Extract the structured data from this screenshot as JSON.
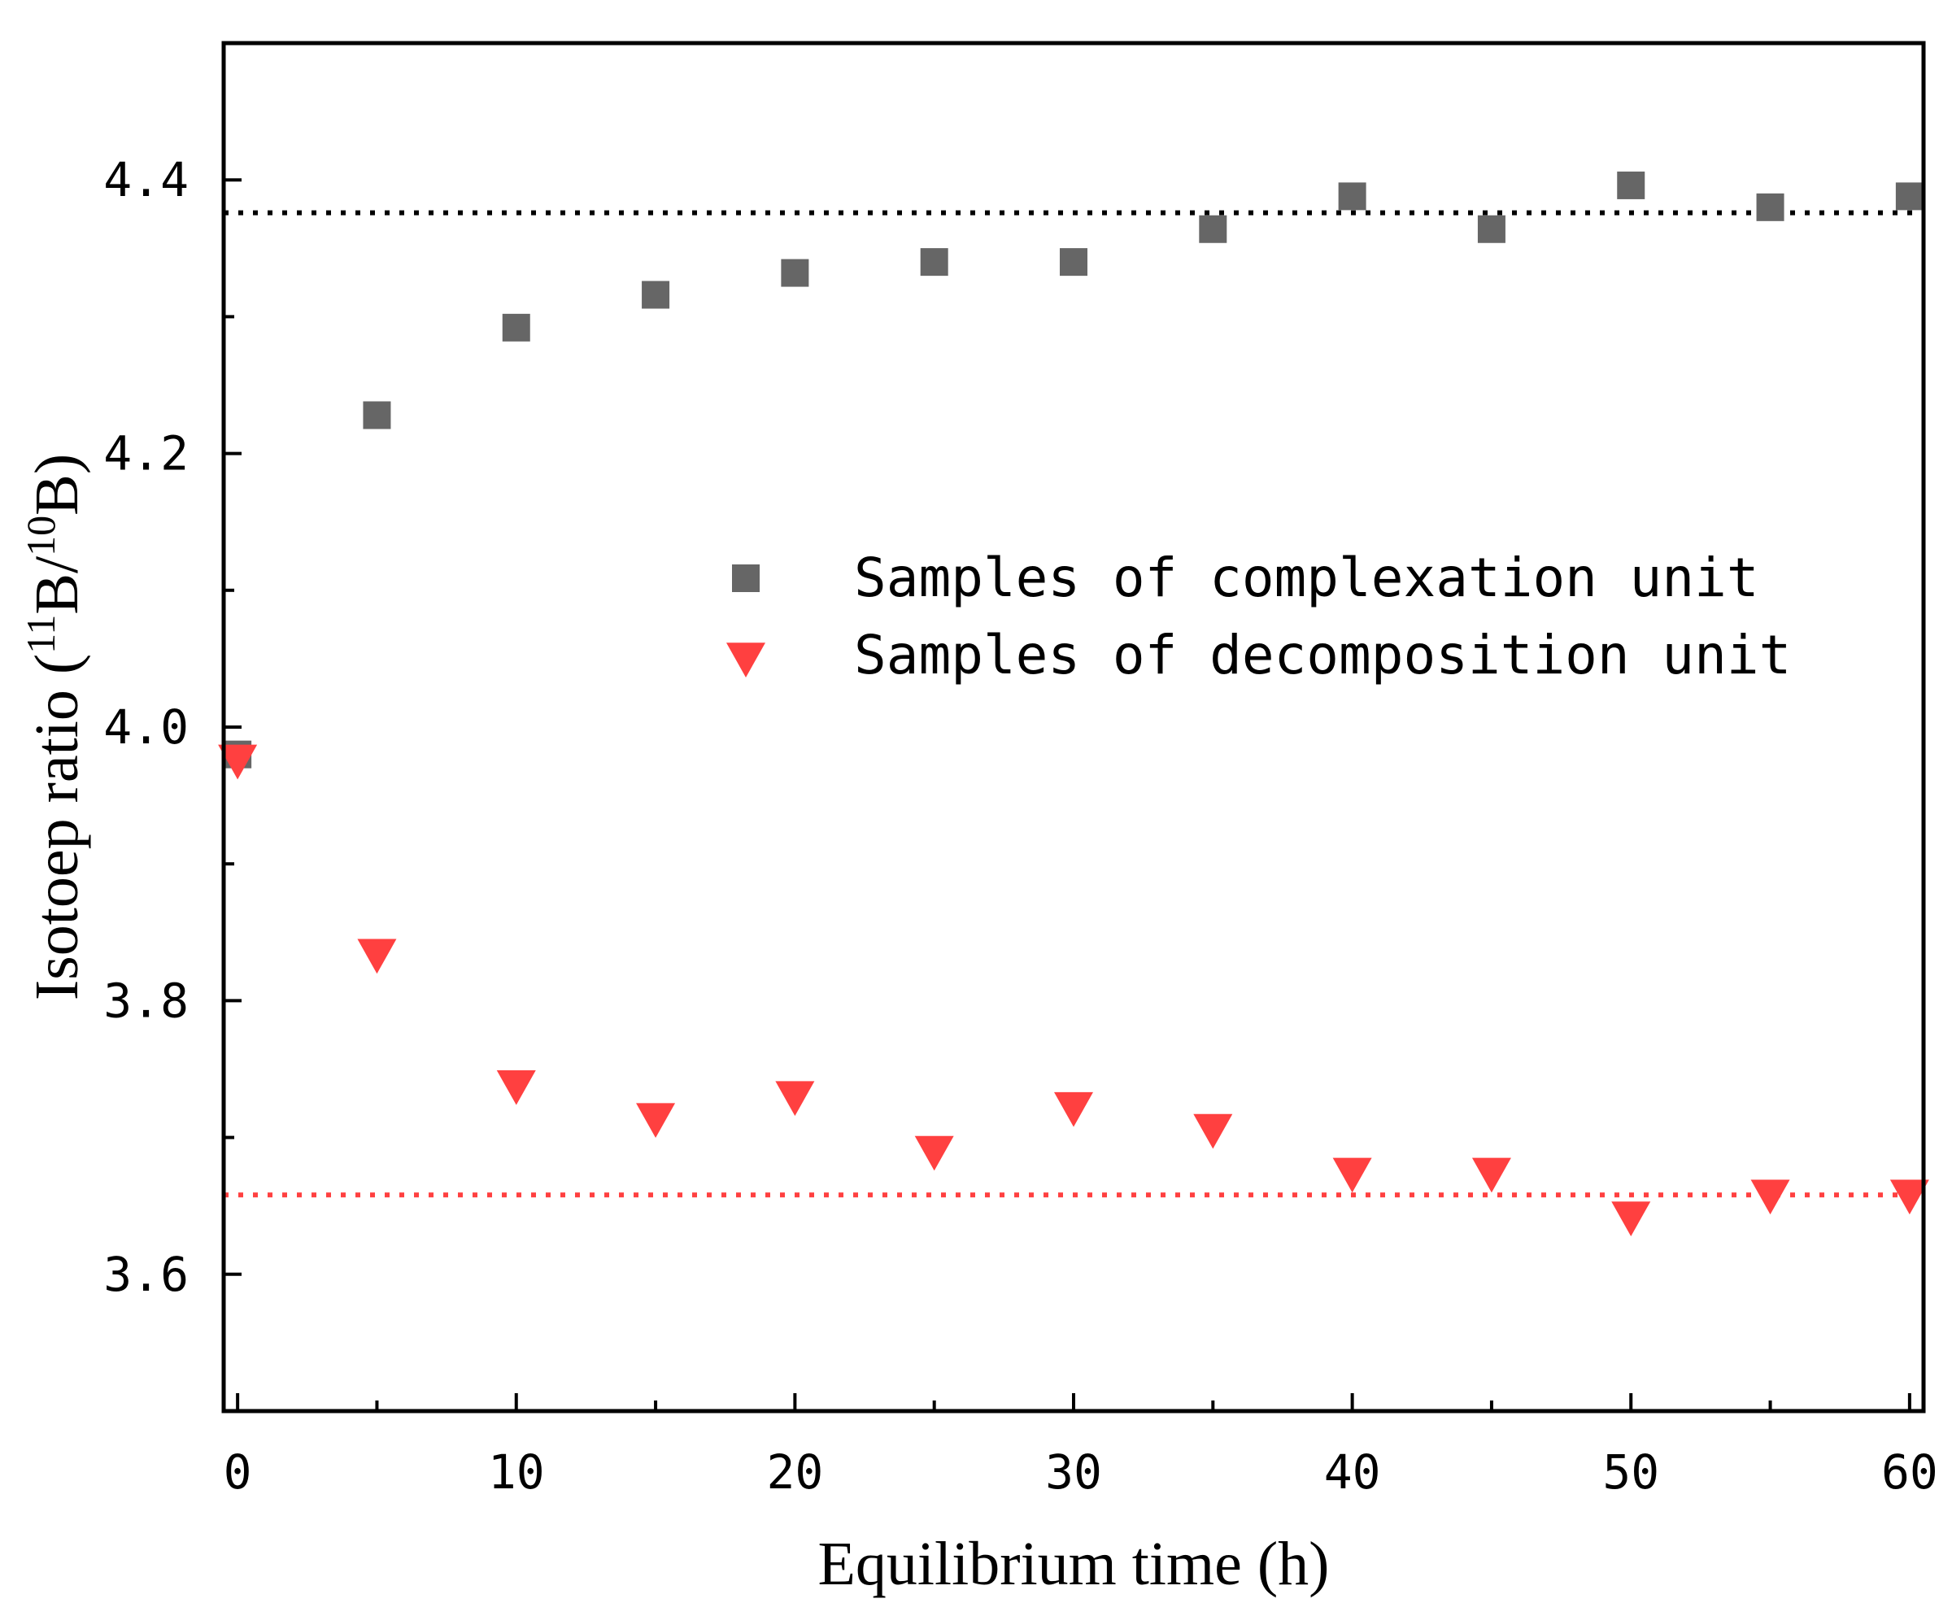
{
  "chart_data": {
    "type": "scatter",
    "xlabel": "Equilibrium time (h)",
    "ylabel_parts": [
      "Isotoep ratio (",
      "11",
      "B/",
      "10",
      "B)"
    ],
    "xlim": [
      -0.5,
      60.5
    ],
    "ylim": [
      3.5,
      4.5
    ],
    "x_ticks": [
      "0",
      "10",
      "20",
      "30",
      "40",
      "50",
      "60"
    ],
    "y_ticks": [
      "3.6",
      "3.8",
      "4.0",
      "4.2",
      "4.4"
    ],
    "series": [
      {
        "name": "Samples of complexation unit",
        "marker": "square",
        "color": "#666666",
        "x": [
          0,
          5,
          10,
          15,
          20,
          25,
          30,
          35,
          40,
          45,
          50,
          55,
          60
        ],
        "y": [
          3.98,
          4.228,
          4.292,
          4.316,
          4.332,
          4.34,
          4.34,
          4.364,
          4.388,
          4.364,
          4.396,
          4.38,
          4.388
        ]
      },
      {
        "name": "Samples of decomposition unit",
        "marker": "triangle-down",
        "color": "#ff4040",
        "x": [
          0,
          5,
          10,
          15,
          20,
          25,
          30,
          35,
          40,
          45,
          50,
          55,
          60
        ],
        "y": [
          3.976,
          3.834,
          3.738,
          3.714,
          3.73,
          3.69,
          3.722,
          3.706,
          3.674,
          3.674,
          3.642,
          3.658,
          3.658
        ]
      }
    ],
    "reference_lines": [
      {
        "y": 4.376,
        "color": "#000000",
        "style": "dotted"
      },
      {
        "y": 3.658,
        "color": "#ff4040",
        "style": "dotted"
      }
    ],
    "legend_position": "center-right"
  }
}
